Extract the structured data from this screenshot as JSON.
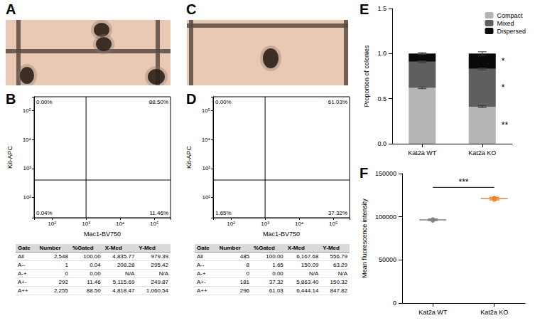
{
  "panel_labels": [
    "A",
    "B",
    "C",
    "D",
    "E",
    "F"
  ],
  "flow_plots": [
    {
      "xlabel": "Mac1-BV750",
      "ylabel": "Kit-APC",
      "log": true,
      "grid": false,
      "xlim": [
        30,
        300000
      ],
      "ylim": [
        20,
        300000
      ],
      "xticks": [
        {
          "value": 100,
          "label": "10²"
        },
        {
          "value": 1000,
          "label": "10³"
        },
        {
          "value": 10000,
          "label": "10⁴"
        },
        {
          "value": 100000,
          "label": "10⁵"
        }
      ],
      "yticks": [
        {
          "value": 100,
          "label": "10²"
        },
        {
          "value": 1000,
          "label": "10³"
        },
        {
          "value": 10000,
          "label": "10⁴"
        },
        {
          "value": 100000,
          "label": "10⁵"
        }
      ],
      "gates": {
        "x": 1000,
        "y": 400
      },
      "quadrants": {
        "upper_left": {
          "value": 0.0,
          "label": "0.00%"
        },
        "upper_right": {
          "value": 88.5,
          "label": "88.50%"
        },
        "lower_left": {
          "value": 0.04,
          "label": "0.04%"
        },
        "lower_right": {
          "value": 11.46,
          "label": "11.46%"
        }
      }
    },
    {
      "xlabel": "Mac1-BV750",
      "ylabel": "Kit-APC",
      "log": true,
      "grid": false,
      "xlim": [
        30,
        300000
      ],
      "ylim": [
        20,
        300000
      ],
      "xticks": [
        {
          "value": 100,
          "label": "10²"
        },
        {
          "value": 1000,
          "label": "10³"
        },
        {
          "value": 10000,
          "label": "10⁴"
        },
        {
          "value": 100000,
          "label": "10⁵"
        }
      ],
      "yticks": [
        {
          "value": 100,
          "label": "10²"
        },
        {
          "value": 1000,
          "label": "10³"
        },
        {
          "value": 10000,
          "label": "10⁴"
        },
        {
          "value": 100000,
          "label": "10⁵"
        }
      ],
      "gates": {
        "x": 1000,
        "y": 400
      },
      "quadrants": {
        "upper_left": {
          "value": 0.0,
          "label": "0.00%"
        },
        "upper_right": {
          "value": 61.03,
          "label": "61.03%"
        },
        "lower_left": {
          "value": 1.65,
          "label": "1.65%"
        },
        "lower_right": {
          "value": 37.32,
          "label": "37.32%"
        }
      }
    }
  ],
  "tables": [
    {
      "header": [
        "Gate",
        "Number",
        "%Gated",
        "X-Med",
        "Y-Med"
      ],
      "rows": [
        [
          "All",
          "2,548",
          "100.00",
          "4,835.77",
          "979.39"
        ],
        [
          "A--",
          "1",
          "0.04",
          "208.28",
          "295.42"
        ],
        [
          "A-+",
          "0",
          "0.00",
          "N/A",
          "N/A"
        ],
        [
          "A+-",
          "292",
          "11.46",
          "5,115.69",
          "249.87"
        ],
        [
          "A++",
          "2,255",
          "88.50",
          "4,818.47",
          "1,060.54"
        ]
      ]
    },
    {
      "header": [
        "Gate",
        "Number",
        "%Gated",
        "X-Med",
        "Y-Med"
      ],
      "rows": [
        [
          "All",
          "485",
          "100.00",
          "6,167.68",
          "556.79"
        ],
        [
          "A--",
          "8",
          "1.65",
          "150.09",
          "63.29"
        ],
        [
          "A-+",
          "0",
          "0.00",
          "N/A",
          "N/A"
        ],
        [
          "A+-",
          "181",
          "37.32",
          "5,863.40",
          "150.32"
        ],
        [
          "A++",
          "296",
          "61.03",
          "6,444.14",
          "847.82"
        ]
      ]
    }
  ],
  "chart_data": [
    {
      "type": "bar",
      "stacked": true,
      "ylabel": "Proportion of colonies",
      "categories": [
        "Kat2a WT",
        "Kat2a KO"
      ],
      "series": [
        {
          "name": "Compact",
          "color": "#b5b5b5",
          "values": [
            0.62,
            0.41
          ],
          "errors": [
            0.01,
            0.01
          ]
        },
        {
          "name": "Mixed",
          "color": "#5f5f5f",
          "values": [
            0.29,
            0.42
          ],
          "errors": [
            0.01,
            0.01
          ]
        },
        {
          "name": "Dispersed",
          "color": "#0a0a0a",
          "values": [
            0.09,
            0.17
          ],
          "errors": [
            0.01,
            0.02
          ]
        }
      ],
      "ylim": [
        0,
        1.5
      ],
      "yticks": [
        {
          "value": 0,
          "label": "0.0"
        },
        {
          "value": 0.5,
          "label": "0.5"
        },
        {
          "value": 1,
          "label": "1.0"
        },
        {
          "value": 1.5,
          "label": "1.5"
        }
      ],
      "grid": false,
      "legend": "upper right",
      "annotations": [
        {
          "text": "*",
          "series": "Dispersed",
          "category": "Kat2a KO"
        },
        {
          "text": "*",
          "series": "Mixed",
          "category": "Kat2a KO"
        },
        {
          "text": "**",
          "series": "Compact",
          "category": "Kat2a KO"
        }
      ]
    },
    {
      "type": "scatter",
      "ylabel": "Mean fluorescence intensity",
      "categories": [
        "Kat2a WT",
        "Kat2a KO"
      ],
      "colors": [
        "#7f7f7f",
        "#f5821f"
      ],
      "points": [
        [
          95500,
          97000,
          96500
        ],
        [
          119500,
          121500,
          122000
        ]
      ],
      "means": [
        96500,
        121000
      ],
      "errors": [
        1000,
        1500
      ],
      "ylim": [
        0,
        150000
      ],
      "yticks": [
        0,
        50000,
        100000,
        150000
      ],
      "grid": false,
      "significance": {
        "text": "***",
        "between": [
          "Kat2a WT",
          "Kat2a KO"
        ]
      }
    }
  ]
}
